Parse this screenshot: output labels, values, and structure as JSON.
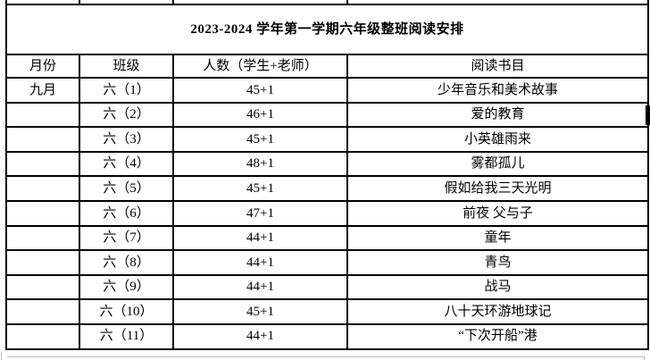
{
  "page": {
    "background_color": "#ffffff",
    "grid_color": "#000000",
    "boundary_mark_color": "#b9b9b9"
  },
  "table": {
    "title": "2023-2024 学年第一学期六年级整班阅读安排",
    "columns": [
      "月份",
      "班级",
      "人数（学生+老师）",
      "阅读书目"
    ],
    "rows": [
      {
        "month": "九月",
        "class": "六（1）",
        "count": "45+1",
        "book": "少年音乐和美术故事"
      },
      {
        "month": "",
        "class": "六（2）",
        "count": "46+1",
        "book": "爱的教育"
      },
      {
        "month": "",
        "class": "六（3）",
        "count": "45+1",
        "book": "小英雄雨来"
      },
      {
        "month": "",
        "class": "六（4）",
        "count": "48+1",
        "book": "雾都孤儿"
      },
      {
        "month": "",
        "class": "六（5）",
        "count": "45+1",
        "book": "假如给我三天光明"
      },
      {
        "month": "",
        "class": "六（6）",
        "count": "47+1",
        "book": "前夜 父与子"
      },
      {
        "month": "",
        "class": "六（7）",
        "count": "44+1",
        "book": "童年"
      },
      {
        "month": "",
        "class": "六（8）",
        "count": "44+1",
        "book": "青鸟"
      },
      {
        "month": "",
        "class": "六（9）",
        "count": "44+1",
        "book": "战马"
      },
      {
        "month": "",
        "class": "六（10）",
        "count": "45+1",
        "book": "八十天环游地球记"
      },
      {
        "month": "",
        "class": "六（11）",
        "count": "44+1",
        "book": "“下次开船”港"
      }
    ]
  }
}
